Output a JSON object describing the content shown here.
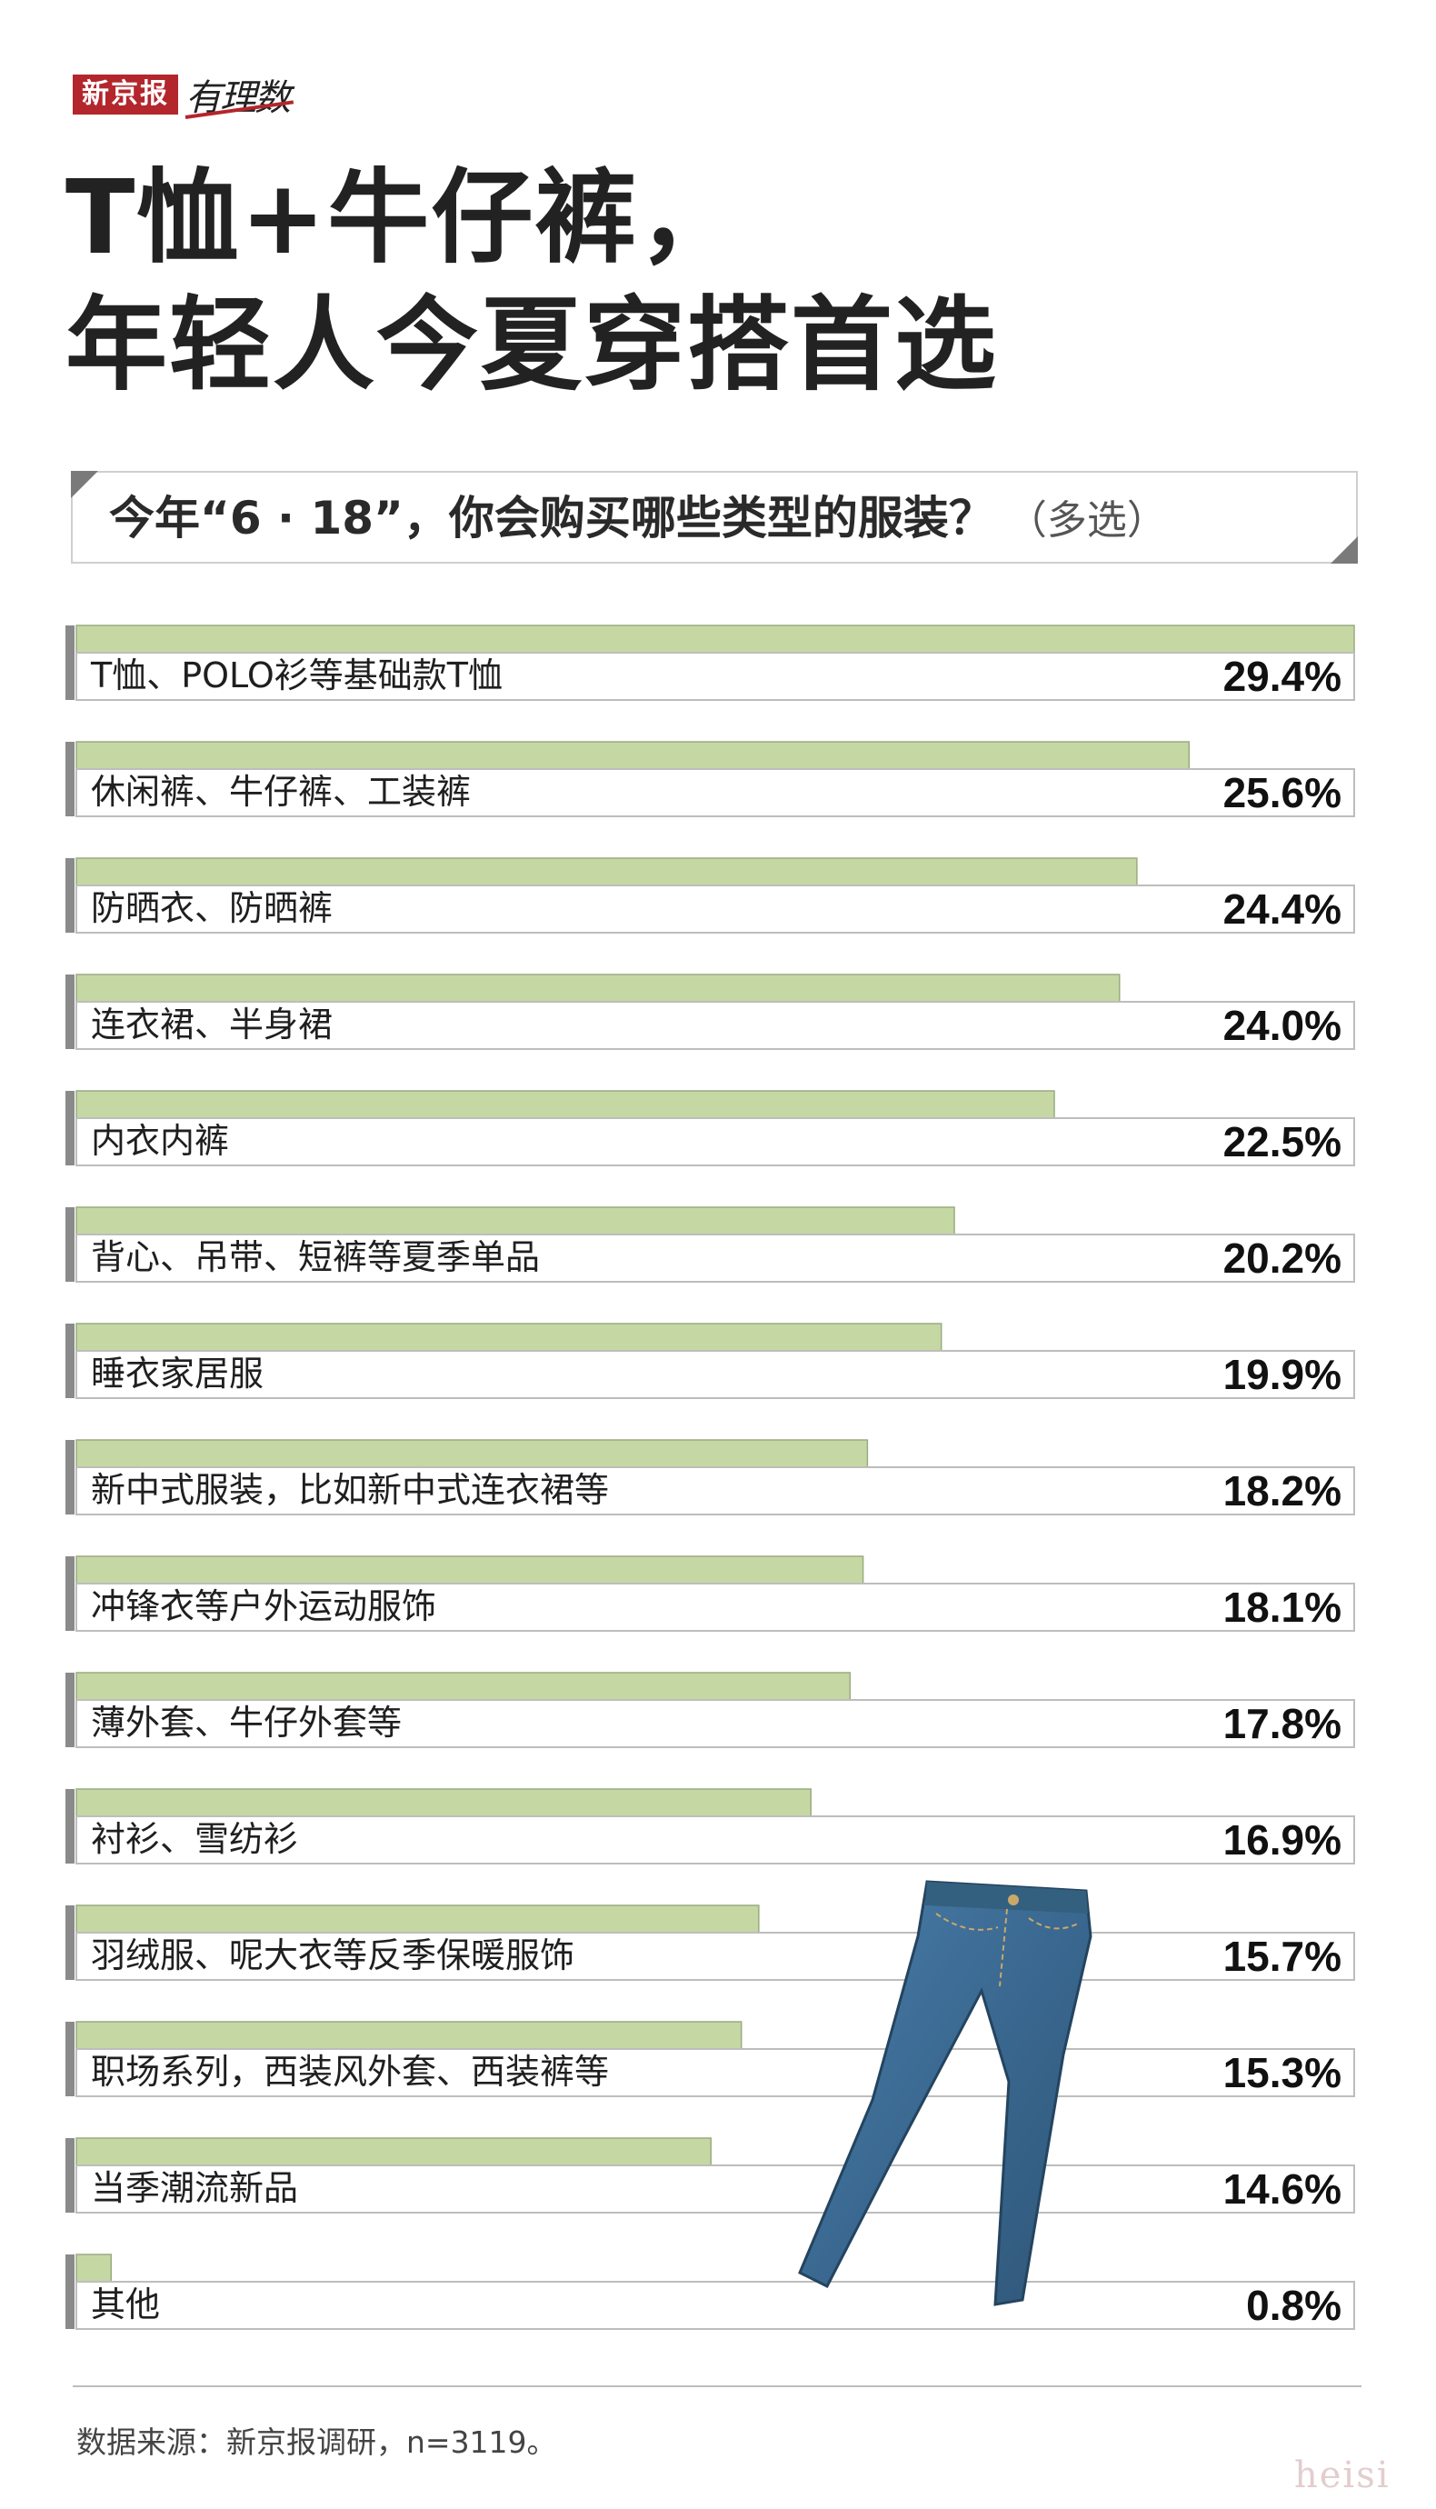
{
  "brand": {
    "name": "新京报",
    "sub": "有理数"
  },
  "title": {
    "line1": "T恤+牛仔裤，",
    "line2": "年轻人今夏穿搭首选"
  },
  "question": {
    "text": "今年“6 · 18”，你会购买哪些类型的服装？",
    "multi": "（多选）"
  },
  "chart_data": {
    "type": "bar",
    "orientation": "horizontal",
    "categories": [
      "T恤、POLO衫等基础款T恤",
      "休闲裤、牛仔裤、工装裤",
      "防晒衣、防晒裤",
      "连衣裙、半身裙",
      "内衣内裤",
      "背心、吊带、短裤等夏季单品",
      "睡衣家居服",
      "新中式服装，比如新中式连衣裙等",
      "冲锋衣等户外运动服饰",
      "薄外套、牛仔外套等",
      "衬衫、雪纺衫",
      "羽绒服、呢大衣等反季保暖服饰",
      "职场系列，西装风外套、西装裤等",
      "当季潮流新品",
      "其他"
    ],
    "values": [
      29.4,
      25.6,
      24.4,
      24.0,
      22.5,
      20.2,
      19.9,
      18.2,
      18.1,
      17.8,
      16.9,
      15.7,
      15.3,
      14.6,
      0.8
    ],
    "value_labels": [
      "29.4%",
      "25.6%",
      "24.4%",
      "24.0%",
      "22.5%",
      "20.2%",
      "19.9%",
      "18.2%",
      "18.1%",
      "17.8%",
      "16.9%",
      "15.7%",
      "15.3%",
      "14.6%",
      "0.8%"
    ],
    "xlim": [
      0,
      29.4
    ],
    "bar_color": "#c5d8a4",
    "bar_border": "#9aab80",
    "grid": false
  },
  "source": "数据来源：新京报调研，n=3119。",
  "watermark": "heisi",
  "decoration": {
    "image": "jeans-icon",
    "color": "#3f6f9a"
  }
}
